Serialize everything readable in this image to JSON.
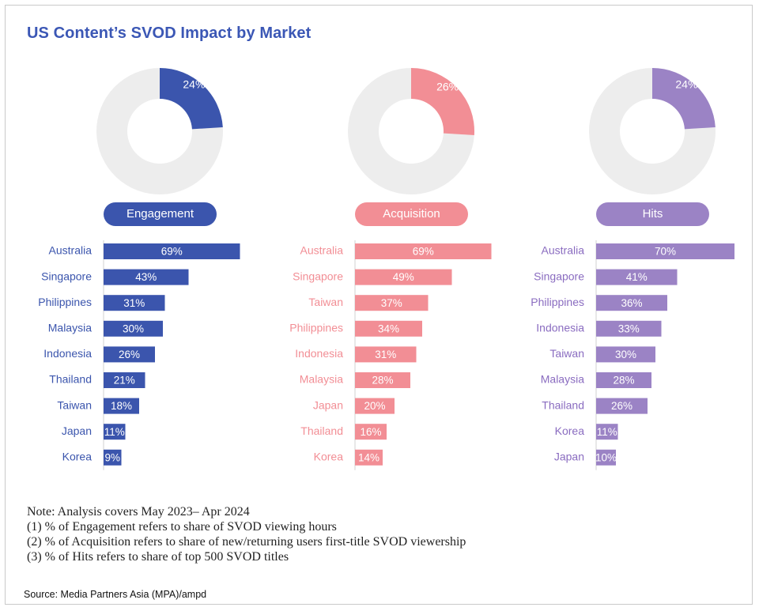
{
  "title": "US Content’s SVOD Impact by Market",
  "notes": [
    "Note: Analysis covers May 2023– Apr 2024",
    "(1) % of Engagement refers to share of SVOD viewing hours",
    "(2) % of Acquisition refers to share of new/returning users first-title SVOD viewership",
    "(3) % of Hits refers to share of top 500 SVOD titles"
  ],
  "source": "Source: Media Partners Asia (MPA)/ampd",
  "chart_data": [
    {
      "type": "pie",
      "name": "Engagement",
      "value": 24,
      "label": "24%",
      "color": "#3b55ad",
      "rest_color": "#ededed"
    },
    {
      "type": "bar",
      "name": "Engagement",
      "orientation": "horizontal",
      "color": "#3b55ad",
      "label_color": "#3b55ad",
      "categories": [
        "Australia",
        "Singapore",
        "Philippines",
        "Malaysia",
        "Indonesia",
        "Thailand",
        "Taiwan",
        "Japan",
        "Korea"
      ],
      "values": [
        69,
        43,
        31,
        30,
        26,
        21,
        18,
        11,
        9
      ],
      "labels": [
        "69%",
        "43%",
        "31%",
        "30%",
        "26%",
        "21%",
        "18%",
        "11%",
        "9%"
      ]
    },
    {
      "type": "pie",
      "name": "Acquisition",
      "value": 26,
      "label": "26%",
      "color": "#f28e95",
      "rest_color": "#ededed"
    },
    {
      "type": "bar",
      "name": "Acquisition",
      "orientation": "horizontal",
      "color": "#f28e95",
      "label_color": "#f28e95",
      "categories": [
        "Australia",
        "Singapore",
        "Taiwan",
        "Philippines",
        "Indonesia",
        "Malaysia",
        "Japan",
        "Thailand",
        "Korea"
      ],
      "values": [
        69,
        49,
        37,
        34,
        31,
        28,
        20,
        16,
        14
      ],
      "labels": [
        "69%",
        "49%",
        "37%",
        "34%",
        "31%",
        "28%",
        "20%",
        "16%",
        "14%"
      ]
    },
    {
      "type": "pie",
      "name": "Hits",
      "value": 24,
      "label": "24%",
      "color": "#9b83c5",
      "rest_color": "#ededed"
    },
    {
      "type": "bar",
      "name": "Hits",
      "orientation": "horizontal",
      "color": "#9b83c5",
      "label_color": "#8a6cc0",
      "categories": [
        "Australia",
        "Singapore",
        "Philippines",
        "Indonesia",
        "Taiwan",
        "Malaysia",
        "Thailand",
        "Korea",
        "Japan"
      ],
      "values": [
        70,
        41,
        36,
        33,
        30,
        28,
        26,
        11,
        10
      ],
      "labels": [
        "70%",
        "41%",
        "36%",
        "33%",
        "30%",
        "28%",
        "26%",
        "11%",
        "10%"
      ]
    }
  ]
}
